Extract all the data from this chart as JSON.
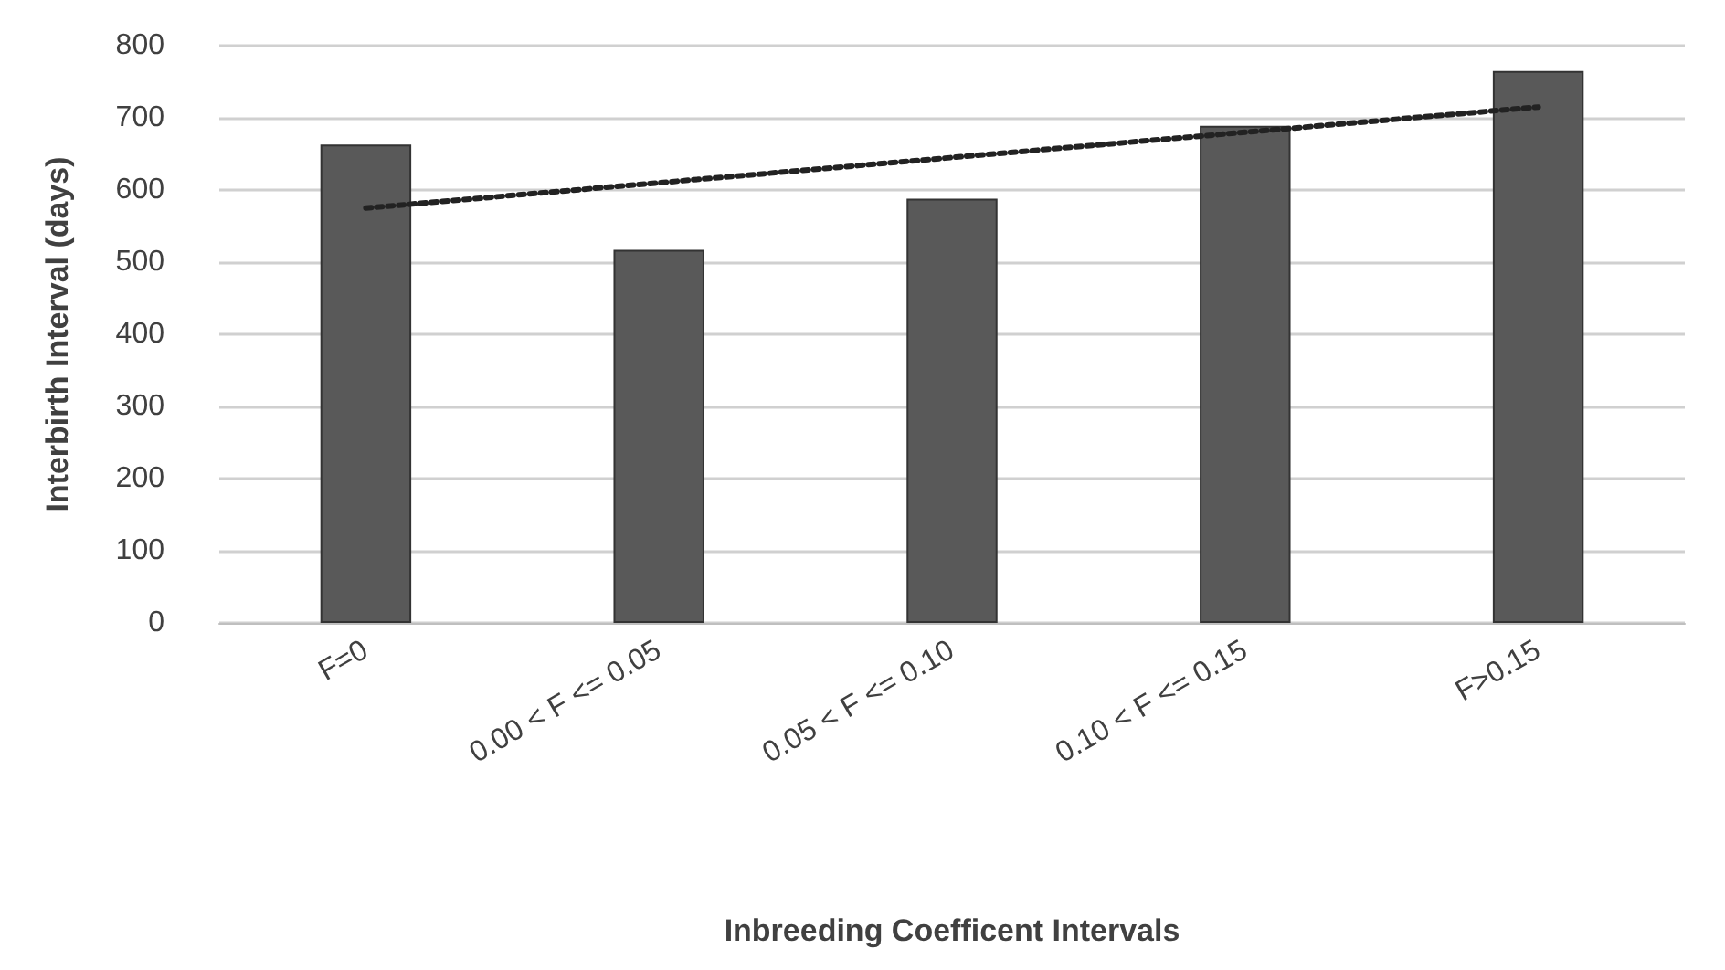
{
  "chart_data": {
    "type": "bar",
    "xlabel": "Inbreeding Coefficent Intervals",
    "ylabel": "Interbirth Interval (days)",
    "categories": [
      "F=0",
      "0.00 < F <= 0.05",
      "0.05 < F <= 0.10",
      "0.10 < F <= 0.15",
      "F>0.15"
    ],
    "series": [
      {
        "color": "#595959",
        "values": [
          663,
          517,
          588,
          689,
          765
        ]
      },
      {
        "type": "line",
        "color": "#222222",
        "line_style": "dotted",
        "marker": "none",
        "x": [
          "F=0",
          "F>0.15"
        ],
        "values": [
          575,
          715
        ]
      }
    ],
    "ylim": [
      0,
      800
    ],
    "yticks": [
      0,
      100,
      200,
      300,
      400,
      500,
      600,
      700,
      800
    ],
    "grid": "y"
  }
}
